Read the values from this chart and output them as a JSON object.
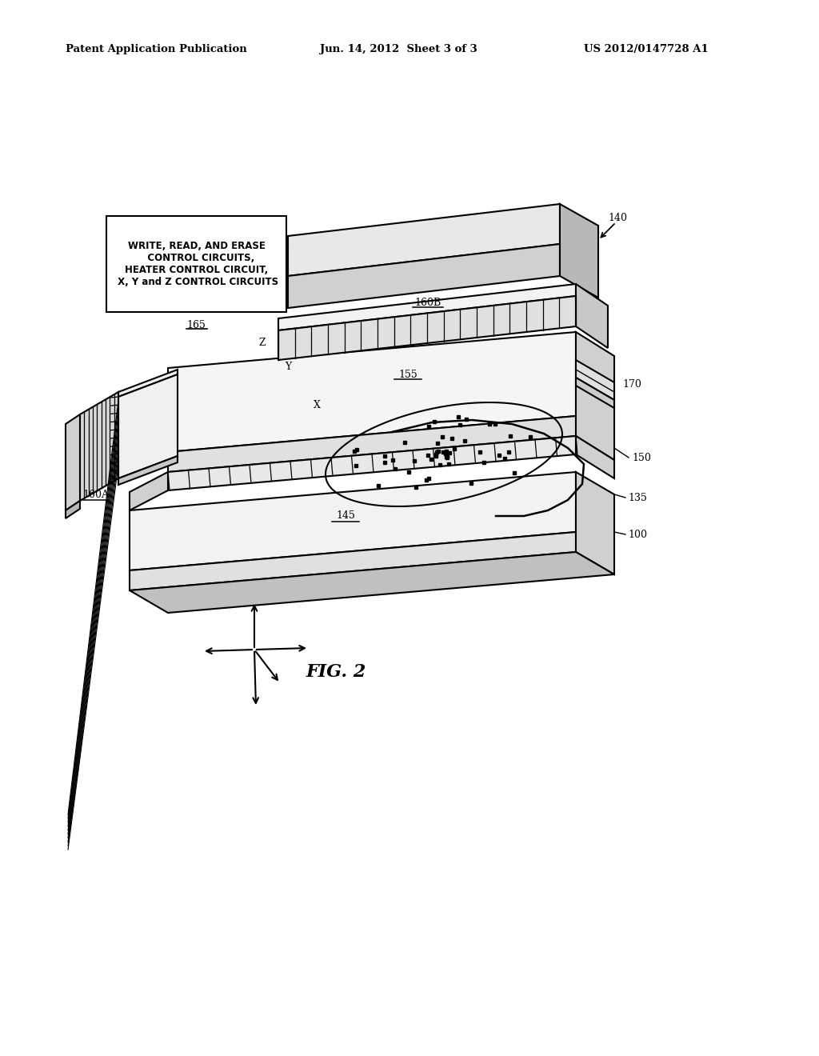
{
  "title": "FIG. 2",
  "header_left": "Patent Application Publication",
  "header_center": "Jun. 14, 2012  Sheet 3 of 3",
  "header_right": "US 2012/0147728 A1",
  "bg_color": "#ffffff",
  "text_color": "#000000",
  "label_box_text": "WRITE, READ, AND ERASE\n   CONTROL CIRCUITS,\nHEATER CONTROL CIRCUIT,\n X, Y and Z CONTROL CIRCUITS",
  "label_165": "165",
  "label_140": "140",
  "label_160B": "160B",
  "label_155": "155",
  "label_160A": "160A",
  "label_170": "170",
  "label_150": "150",
  "label_135": "135",
  "label_145": "145",
  "label_100": "100"
}
